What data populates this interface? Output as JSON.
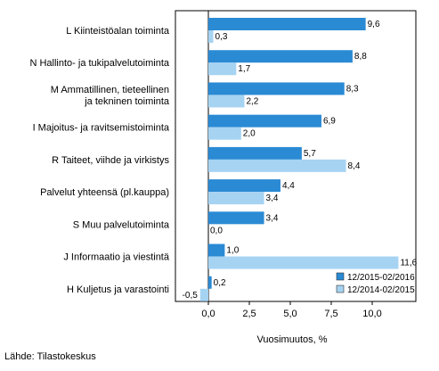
{
  "chart_data": {
    "type": "bar",
    "orientation": "horizontal",
    "categories": [
      [
        "L Kiinteistöalan toiminta"
      ],
      [
        "N Hallinto- ja tukipalvelutoiminta"
      ],
      [
        "M Ammatillinen, tieteellinen",
        "ja tekninen toiminta"
      ],
      [
        "I Majoitus- ja ravitsemistoiminta"
      ],
      [
        "R Taiteet, viihde ja virkistys"
      ],
      [
        "Palvelut yhteensä (pl.kauppa)"
      ],
      [
        "S Muu palvelutoiminta"
      ],
      [
        "J Informaatio ja viestintä"
      ],
      [
        "H Kuljetus ja varastointi"
      ]
    ],
    "series": [
      {
        "name": "12/2015-02/2016",
        "color": "#2a8ad4",
        "values": [
          9.6,
          8.8,
          8.3,
          6.9,
          5.7,
          4.4,
          3.4,
          1.0,
          0.2
        ],
        "labels": [
          "9,6",
          "8,8",
          "8,3",
          "6,9",
          "5,7",
          "4,4",
          "3,4",
          "1,0",
          "0,2"
        ]
      },
      {
        "name": "12/2014-02/2015",
        "color": "#a6d3f2",
        "values": [
          0.3,
          1.7,
          2.2,
          2.0,
          8.4,
          3.4,
          0.0,
          11.6,
          -0.5
        ],
        "labels": [
          "0,3",
          "1,7",
          "2,2",
          "2,0",
          "8,4",
          "3,4",
          "0,0",
          "11,6",
          "-0,5"
        ]
      }
    ],
    "xlabel": "Vuosimuutos, %",
    "xlim": [
      -2.5,
      12.5
    ],
    "ticks": [
      0,
      2.5,
      5,
      7.5,
      10
    ],
    "tick_labels": [
      "0,0",
      "2,5",
      "5,0",
      "7,5",
      "10,0"
    ],
    "grid": false,
    "legend_position": "bottom-right",
    "axis_color": "#000000",
    "background": "#ffffff"
  },
  "footer": {
    "source": "Lähde: Tilastokeskus"
  }
}
